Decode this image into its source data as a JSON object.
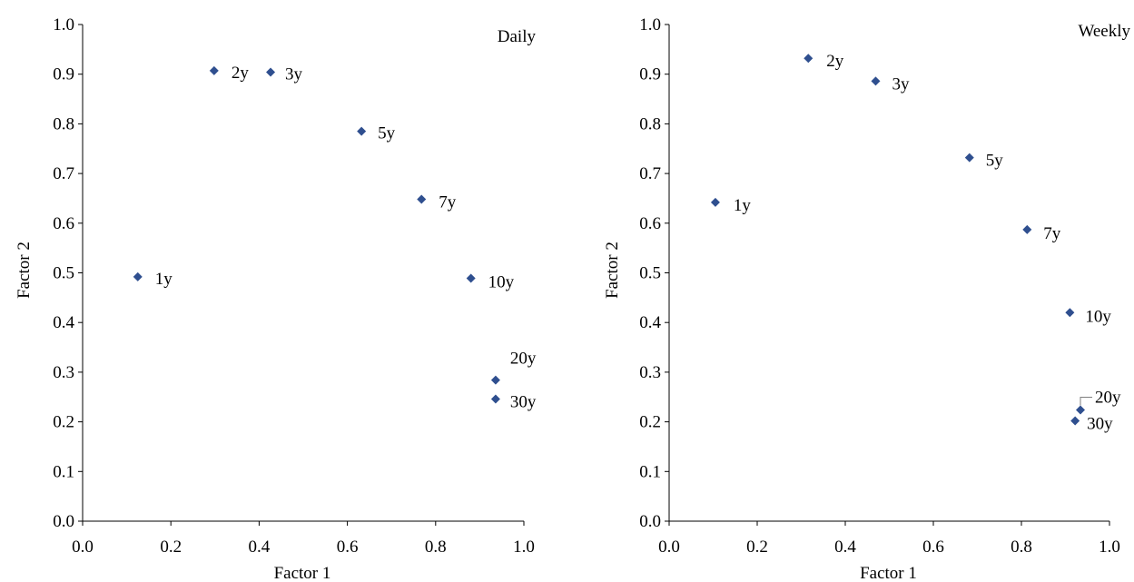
{
  "chart_data": [
    {
      "type": "scatter",
      "title": "Daily",
      "xlabel": "Factor 1",
      "ylabel": "Factor 2",
      "xlim": [
        0.0,
        1.0
      ],
      "ylim": [
        0.0,
        1.0
      ],
      "xticks": [
        "0.0",
        "0.2",
        "0.4",
        "0.6",
        "0.8",
        "1.0"
      ],
      "yticks": [
        "0.0",
        "0.1",
        "0.2",
        "0.3",
        "0.4",
        "0.5",
        "0.6",
        "0.7",
        "0.8",
        "0.9",
        "1.0"
      ],
      "grid": false,
      "legend": "none",
      "marker_color": "#2f4f8f",
      "points": [
        {
          "label": "1y",
          "x": 0.125,
          "y": 0.492
        },
        {
          "label": "2y",
          "x": 0.298,
          "y": 0.907
        },
        {
          "label": "3y",
          "x": 0.426,
          "y": 0.904
        },
        {
          "label": "5y",
          "x": 0.632,
          "y": 0.785
        },
        {
          "label": "7y",
          "x": 0.768,
          "y": 0.648
        },
        {
          "label": "10y",
          "x": 0.88,
          "y": 0.489
        },
        {
          "label": "20y",
          "x": 0.936,
          "y": 0.284
        },
        {
          "label": "30y",
          "x": 0.936,
          "y": 0.246
        }
      ]
    },
    {
      "type": "scatter",
      "title": "Weekly",
      "xlabel": "Factor 1",
      "ylabel": "Factor 2",
      "xlim": [
        0.0,
        1.0
      ],
      "ylim": [
        0.0,
        1.0
      ],
      "xticks": [
        "0.0",
        "0.2",
        "0.4",
        "0.6",
        "0.8",
        "1.0"
      ],
      "yticks": [
        "0.0",
        "0.1",
        "0.2",
        "0.3",
        "0.4",
        "0.5",
        "0.6",
        "0.7",
        "0.8",
        "0.9",
        "1.0"
      ],
      "grid": false,
      "legend": "none",
      "marker_color": "#2f4f8f",
      "points": [
        {
          "label": "1y",
          "x": 0.105,
          "y": 0.642
        },
        {
          "label": "2y",
          "x": 0.316,
          "y": 0.932
        },
        {
          "label": "3y",
          "x": 0.469,
          "y": 0.886
        },
        {
          "label": "5y",
          "x": 0.682,
          "y": 0.732
        },
        {
          "label": "7y",
          "x": 0.813,
          "y": 0.587
        },
        {
          "label": "10y",
          "x": 0.91,
          "y": 0.42
        },
        {
          "label": "20y",
          "x": 0.934,
          "y": 0.224
        },
        {
          "label": "30y",
          "x": 0.922,
          "y": 0.202
        }
      ]
    }
  ]
}
